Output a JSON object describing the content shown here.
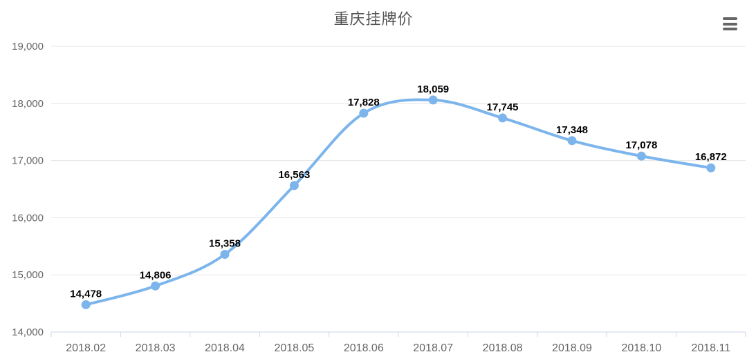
{
  "header": {
    "title": "重庆挂牌价"
  },
  "menu": {
    "icon": "hamburger-menu-icon"
  },
  "chart_data": {
    "type": "line",
    "title": "重庆挂牌价",
    "categories": [
      "2018.02",
      "2018.03",
      "2018.04",
      "2018.05",
      "2018.06",
      "2018.07",
      "2018.08",
      "2018.09",
      "2018.10",
      "2018.11"
    ],
    "values": [
      14478,
      14806,
      15358,
      16563,
      17828,
      18059,
      17745,
      17348,
      17078,
      16872
    ],
    "values_formatted": [
      "14,478",
      "14,806",
      "15,358",
      "16,563",
      "17,828",
      "18,059",
      "17,745",
      "17,348",
      "17,078",
      "16,872"
    ],
    "xlabel": "",
    "ylabel": "",
    "ylim": [
      14000,
      19000
    ],
    "y_ticks": [
      14000,
      15000,
      16000,
      17000,
      18000,
      19000
    ],
    "y_tick_labels": [
      "14,000",
      "15,000",
      "16,000",
      "17,000",
      "18,000",
      "19,000"
    ],
    "grid": "on",
    "legend": "none",
    "line_style": "spline",
    "colors": {
      "line": "#7cb5ec",
      "marker": "#7cb5ec",
      "data_label": "#000000",
      "axis_text": "#666666",
      "grid": "#e6e6e6",
      "axis_line": "#ccd6eb",
      "title": "#545454",
      "background": "#ffffff"
    }
  }
}
